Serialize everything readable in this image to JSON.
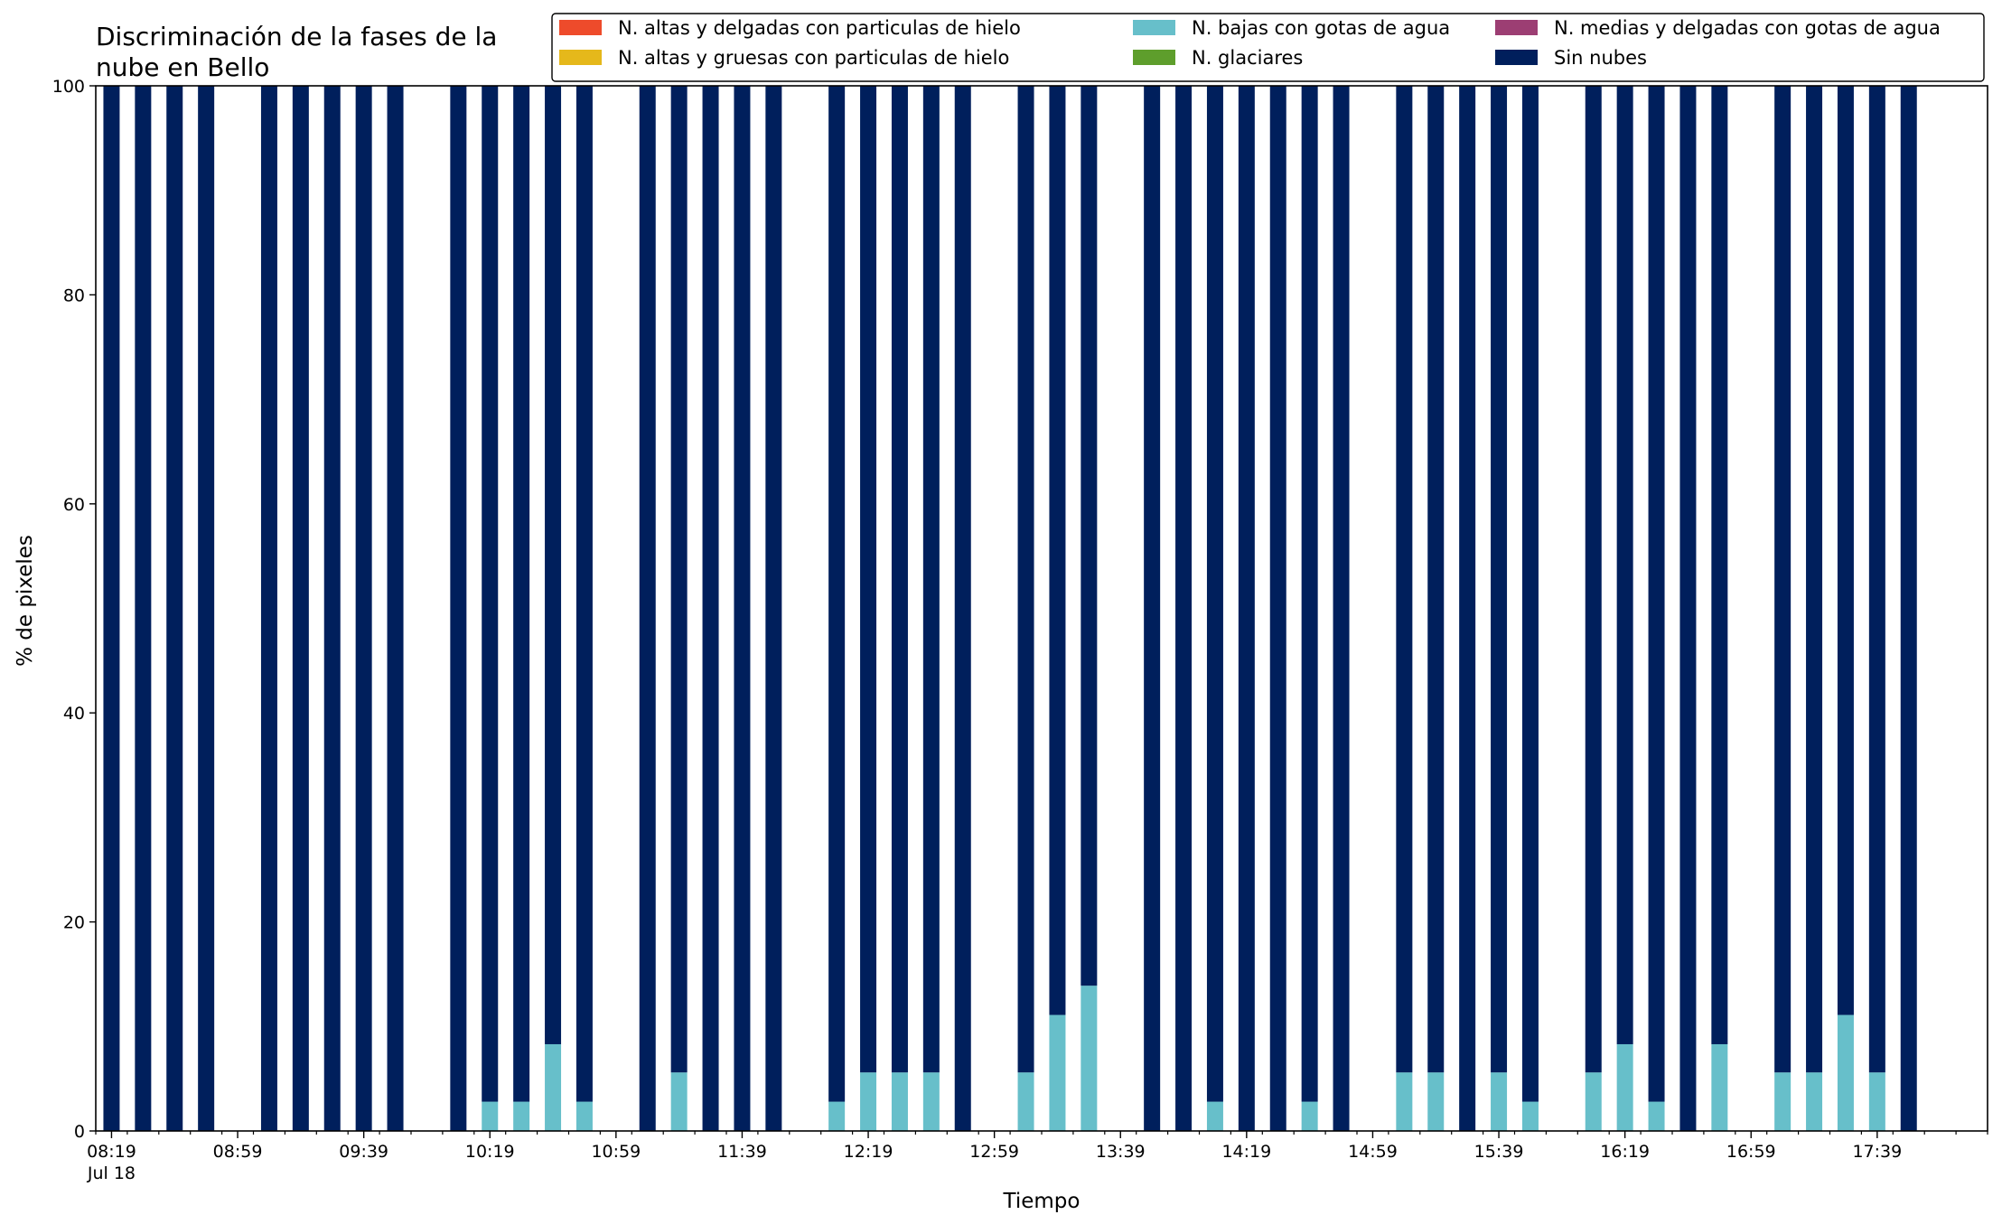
{
  "chart_data": {
    "type": "bar",
    "stacked": true,
    "title": "Discriminación de la fases de la nube en Bello",
    "title_lines": [
      "Discriminación de la fases de la",
      "nube en Bello"
    ],
    "xlabel": "Tiempo",
    "ylabel": "% de pixeles",
    "ylim": [
      0,
      100
    ],
    "yticks": [
      0,
      20,
      40,
      60,
      80,
      100
    ],
    "xtick_labels": [
      "08:19",
      "08:59",
      "09:39",
      "10:19",
      "10:59",
      "11:39",
      "12:19",
      "12:59",
      "13:39",
      "14:19",
      "14:59",
      "15:39",
      "16:19",
      "16:59",
      "17:39"
    ],
    "x_date_label": "Jul 18",
    "grid": false,
    "legend_position": "top-right",
    "x": [
      "08:19",
      "08:29",
      "08:39",
      "08:49",
      "08:59",
      "09:09",
      "09:19",
      "09:29",
      "09:39",
      "09:49",
      "09:59",
      "10:09",
      "10:19",
      "10:29",
      "10:39",
      "10:49",
      "10:59",
      "11:09",
      "11:19",
      "11:29",
      "11:39",
      "11:49",
      "11:59",
      "12:09",
      "12:19",
      "12:29",
      "12:39",
      "12:49",
      "12:59",
      "13:09",
      "13:19",
      "13:29",
      "13:39",
      "13:49",
      "13:59",
      "14:09",
      "14:19",
      "14:29",
      "14:39",
      "14:49",
      "14:59",
      "15:09",
      "15:19",
      "15:29",
      "15:39",
      "15:49",
      "15:59",
      "16:09",
      "16:19",
      "16:29",
      "16:39",
      "16:49",
      "16:59",
      "17:09",
      "17:19",
      "17:29",
      "17:39",
      "17:49",
      "17:59"
    ],
    "series": [
      {
        "name": "N. altas y delgadas con particulas de hielo",
        "color": "#ee4b2b",
        "values": [
          0,
          0,
          0,
          0,
          null,
          0,
          0,
          0,
          0,
          0,
          null,
          0,
          0,
          0,
          0,
          0,
          null,
          0,
          0,
          0,
          0,
          0,
          null,
          0,
          0,
          0,
          0,
          0,
          null,
          0,
          0,
          0,
          null,
          0,
          0,
          0,
          0,
          0,
          0,
          0,
          null,
          0,
          0,
          0,
          0,
          0,
          null,
          0,
          0,
          0,
          0,
          0,
          null,
          0,
          0,
          0,
          0,
          0,
          null
        ]
      },
      {
        "name": "N. altas y gruesas con particulas de hielo",
        "color": "#e5b81b",
        "values": [
          0,
          0,
          0,
          0,
          null,
          0,
          0,
          0,
          0,
          0,
          null,
          0,
          0,
          0,
          0,
          0,
          null,
          0,
          0,
          0,
          0,
          0,
          null,
          0,
          0,
          0,
          0,
          0,
          null,
          0,
          0,
          0,
          null,
          0,
          0,
          0,
          0,
          0,
          0,
          0,
          null,
          0,
          0,
          0,
          0,
          0,
          null,
          0,
          0,
          0,
          0,
          0,
          null,
          0,
          0,
          0,
          0,
          0,
          null
        ]
      },
      {
        "name": "N. bajas con gotas de agua",
        "color": "#67bfca",
        "values": [
          0,
          0,
          0,
          0,
          null,
          0,
          0,
          0,
          0,
          0,
          null,
          0,
          2.8,
          2.8,
          8.3,
          2.8,
          null,
          0,
          5.6,
          0,
          0,
          0,
          null,
          2.8,
          5.6,
          5.6,
          5.6,
          0,
          null,
          5.6,
          11.1,
          13.9,
          null,
          0,
          0,
          2.8,
          0,
          0,
          2.8,
          0,
          null,
          5.6,
          5.6,
          0,
          5.6,
          2.8,
          null,
          5.6,
          8.3,
          2.8,
          0,
          8.3,
          null,
          5.6,
          5.6,
          11.1,
          5.6,
          0,
          null
        ]
      },
      {
        "name": "N. glaciares",
        "color": "#5e9e2c",
        "values": [
          0,
          0,
          0,
          0,
          null,
          0,
          0,
          0,
          0,
          0,
          null,
          0,
          0,
          0,
          0,
          0,
          null,
          0,
          0,
          0,
          0,
          0,
          null,
          0,
          0,
          0,
          0,
          0,
          null,
          0,
          0,
          0,
          null,
          0,
          0,
          0,
          0,
          0,
          0,
          0,
          null,
          0,
          0,
          0,
          0,
          0,
          null,
          0,
          0,
          0,
          0,
          0,
          null,
          0,
          0,
          0,
          0,
          0,
          null
        ]
      },
      {
        "name": "N. medias y delgadas con gotas de agua",
        "color": "#9c3e73",
        "values": [
          0,
          0,
          0,
          0,
          null,
          0,
          0,
          0,
          0,
          0,
          null,
          0,
          0,
          0,
          0,
          0,
          null,
          0,
          0,
          0,
          0,
          0,
          null,
          0,
          0,
          0,
          0,
          0,
          null,
          0,
          0,
          0,
          null,
          0,
          0,
          0,
          0,
          0,
          0,
          0,
          null,
          0,
          0,
          0,
          0,
          0,
          null,
          0,
          0,
          0,
          0,
          0,
          null,
          0,
          0,
          0,
          0,
          0,
          null
        ]
      },
      {
        "name": "Sin nubes",
        "color": "#001f5c",
        "values": [
          100,
          100,
          100,
          100,
          null,
          100,
          100,
          100,
          100,
          100,
          null,
          100,
          97.2,
          97.2,
          91.7,
          97.2,
          null,
          100,
          94.4,
          100,
          100,
          100,
          null,
          97.2,
          94.4,
          94.4,
          94.4,
          100,
          null,
          94.4,
          88.9,
          86.1,
          null,
          100,
          100,
          97.2,
          100,
          100,
          97.2,
          100,
          null,
          94.4,
          94.4,
          100,
          94.4,
          97.2,
          null,
          94.4,
          91.7,
          97.2,
          100,
          91.7,
          null,
          94.4,
          94.4,
          88.9,
          94.4,
          100,
          null
        ]
      }
    ]
  }
}
